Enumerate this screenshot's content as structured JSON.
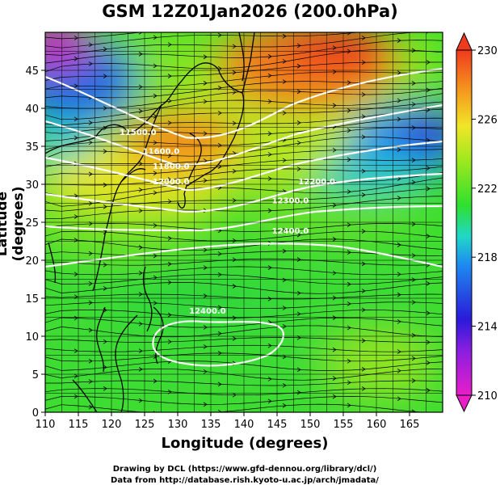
{
  "title": "GSM 12Z01Jan2026 (200.0hPa)",
  "xlabel": "Longitude (degrees)",
  "ylabel": "Latitude  (degrees)",
  "credits": [
    "Drawing by DCL (https://www.gfd-dennou.org/library/dcl/)",
    "Data from http://database.rish.kyoto-u.ac.jp/arch/jmadata/"
  ],
  "chart_data": {
    "type": "map",
    "projection": "equirectangular",
    "xlim": [
      110,
      170
    ],
    "ylim": [
      0,
      50
    ],
    "x_ticks": [
      "110",
      "115",
      "120",
      "125",
      "130",
      "135",
      "140",
      "145",
      "150",
      "155",
      "160",
      "165"
    ],
    "y_ticks": [
      "0",
      "5",
      "10",
      "15",
      "20",
      "25",
      "30",
      "35",
      "40",
      "45"
    ],
    "grid": true,
    "colorbar": {
      "ticks": [
        "210",
        "214",
        "218",
        "222",
        "226",
        "230"
      ],
      "range": [
        210,
        230
      ],
      "colors": [
        "#e81ec8",
        "#2a1ad8",
        "#1e7cf0",
        "#21d7c8",
        "#2fe02f",
        "#9ee81e",
        "#f0e628",
        "#f59a1e",
        "#ef3a1e"
      ],
      "extend": "both"
    },
    "contour_labels": [
      {
        "text": "11500.0",
        "lon": 124.0,
        "lat": 36.5
      },
      {
        "text": "11600.0",
        "lon": 127.5,
        "lat": 34.0
      },
      {
        "text": "11800.0",
        "lon": 129.0,
        "lat": 32.0
      },
      {
        "text": "12000.0",
        "lon": 129.0,
        "lat": 30.0
      },
      {
        "text": "12200.0",
        "lon": 151.0,
        "lat": 30.0
      },
      {
        "text": "12300.0",
        "lon": 147.0,
        "lat": 27.5
      },
      {
        "text": "12400.0",
        "lon": 147.0,
        "lat": 23.5
      },
      {
        "text": "12400.0",
        "lon": 134.5,
        "lat": 13.0
      }
    ],
    "temperature_regions": [
      {
        "kind": "warm",
        "value": 228,
        "lon": 147,
        "lat": 46
      },
      {
        "kind": "warm",
        "value": 227,
        "lon": 128,
        "lat": 37
      },
      {
        "kind": "cold",
        "value": 216,
        "lon": 160,
        "lat": 37
      },
      {
        "kind": "cold",
        "value": 212,
        "lon": 116,
        "lat": 45
      }
    ]
  }
}
